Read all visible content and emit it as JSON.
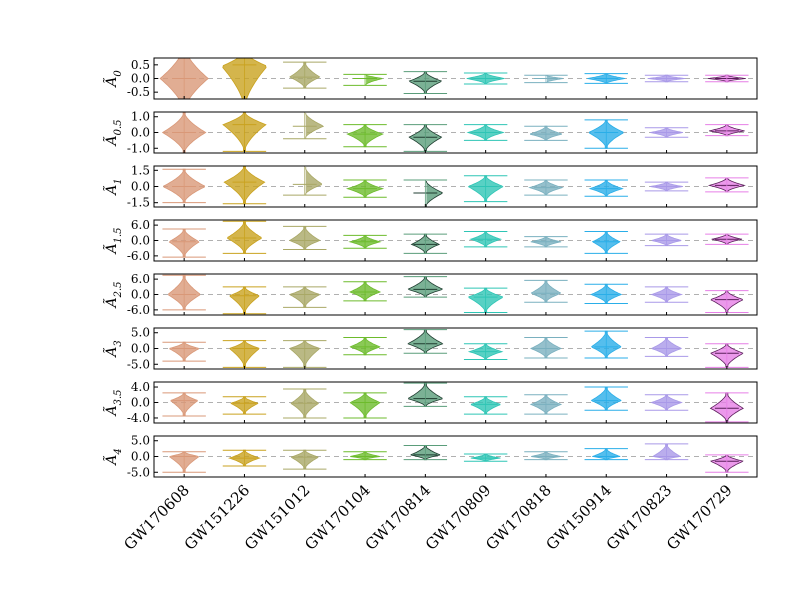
{
  "chart_data": {
    "type": "violin",
    "title": "",
    "xlabel": "",
    "categories": [
      "GW170608",
      "GW151226",
      "GW151012",
      "GW170104",
      "GW170814",
      "GW170809",
      "GW170818",
      "GW150914",
      "GW170823",
      "GW170729"
    ],
    "colors": [
      "#d99878",
      "#c9a21f",
      "#a9a866",
      "#6dbb2c",
      "#5a9d7a",
      "#2ec5b5",
      "#7ab0bf",
      "#2aaee8",
      "#a999e8",
      "#e67fe6"
    ],
    "outlines": [
      "none",
      "none",
      "none",
      "none",
      "#1f3d30",
      "none",
      "none",
      "none",
      "none",
      "#5b1f5b"
    ],
    "panels": [
      {
        "label_base": "Ã",
        "label_sub": "0",
        "ylim": [
          -0.75,
          0.75
        ],
        "ticks": [
          -0.5,
          0.0,
          0.5
        ],
        "tick_labels": [
          "-0.5",
          "0.0",
          "0.5"
        ],
        "violins": [
          {
            "c": 0.0,
            "lo": -1.2,
            "hi": 1.2,
            "w": 0.95,
            "lw": 0.25,
            "med": 0.0
          },
          {
            "c": 0.45,
            "lo": -1.1,
            "hi": 1.0,
            "w": 0.9,
            "lw": 0.22,
            "med": 0.5
          },
          {
            "c": 0.05,
            "lo": -0.35,
            "hi": 0.6,
            "w": 0.6,
            "lw": 0.2,
            "med": 0.05
          },
          {
            "c": 0.0,
            "lo": -0.25,
            "hi": 0.15,
            "w": 0.7,
            "lw": 0.4,
            "med": 0.0
          },
          {
            "c": -0.1,
            "lo": -0.55,
            "hi": 0.25,
            "w": 0.65,
            "lw": 0.35,
            "med": -0.1
          },
          {
            "c": 0.0,
            "lo": -0.2,
            "hi": 0.2,
            "w": 0.75,
            "lw": 0.45,
            "med": 0.0
          },
          {
            "c": 0.0,
            "lo": -0.15,
            "hi": 0.12,
            "w": 0.7,
            "lw": 0.45,
            "med": 0.0
          },
          {
            "c": 0.0,
            "lo": -0.18,
            "hi": 0.18,
            "w": 0.75,
            "lw": 0.45,
            "med": 0.0
          },
          {
            "c": 0.0,
            "lo": -0.12,
            "hi": 0.12,
            "w": 0.75,
            "lw": 0.45,
            "med": 0.0
          },
          {
            "c": 0.0,
            "lo": -0.12,
            "hi": 0.12,
            "w": 0.75,
            "lw": 0.5,
            "med": 0.0
          }
        ]
      },
      {
        "label_base": "Ã",
        "label_sub": "0.5",
        "ylim": [
          -1.3,
          1.3
        ],
        "ticks": [
          -1.0,
          0.0,
          1.0
        ],
        "tick_labels": [
          "-1.0",
          "0.0",
          "1.0"
        ],
        "violins": [
          {
            "c": 0.0,
            "lo": -1.3,
            "hi": 1.3,
            "w": 0.85,
            "lw": 0.25,
            "med": 0.0
          },
          {
            "c": 0.5,
            "lo": -1.2,
            "hi": 1.3,
            "w": 0.85,
            "lw": 0.25,
            "med": 0.5
          },
          {
            "c": 0.4,
            "lo": -0.4,
            "hi": 1.3,
            "w": 0.75,
            "lw": 0.25,
            "med": 0.4
          },
          {
            "c": -0.1,
            "lo": -0.9,
            "hi": 0.5,
            "w": 0.7,
            "lw": 0.35,
            "med": -0.1
          },
          {
            "c": -0.3,
            "lo": -1.2,
            "hi": 0.5,
            "w": 0.65,
            "lw": 0.35,
            "med": -0.3
          },
          {
            "c": 0.0,
            "lo": -0.5,
            "hi": 0.5,
            "w": 0.7,
            "lw": 0.4,
            "med": 0.0
          },
          {
            "c": -0.1,
            "lo": -0.5,
            "hi": 0.4,
            "w": 0.65,
            "lw": 0.4,
            "med": -0.1
          },
          {
            "c": 0.0,
            "lo": -1.0,
            "hi": 0.8,
            "w": 0.7,
            "lw": 0.3,
            "med": 0.0
          },
          {
            "c": 0.0,
            "lo": -0.3,
            "hi": 0.3,
            "w": 0.65,
            "lw": 0.45,
            "med": 0.0
          },
          {
            "c": 0.1,
            "lo": -0.2,
            "hi": 0.5,
            "w": 0.7,
            "lw": 0.45,
            "med": 0.1
          }
        ]
      },
      {
        "label_base": "Ã",
        "label_sub": "1",
        "ylim": [
          -1.9,
          1.9
        ],
        "ticks": [
          -1.5,
          0.0,
          1.5
        ],
        "tick_labels": [
          "-1.5",
          "0.0",
          "1.5"
        ],
        "violins": [
          {
            "c": 0.0,
            "lo": -1.5,
            "hi": 1.6,
            "w": 0.85,
            "lw": 0.3,
            "med": 0.0
          },
          {
            "c": 0.4,
            "lo": -1.6,
            "hi": 1.9,
            "w": 0.8,
            "lw": 0.3,
            "med": 0.4
          },
          {
            "c": 0.2,
            "lo": -0.8,
            "hi": 1.9,
            "w": 0.7,
            "lw": 0.3,
            "med": 0.2
          },
          {
            "c": -0.2,
            "lo": -1.0,
            "hi": 0.6,
            "w": 0.7,
            "lw": 0.4,
            "med": -0.2
          },
          {
            "c": -0.6,
            "lo": -1.9,
            "hi": 0.6,
            "w": 0.7,
            "lw": 0.35,
            "med": -0.6
          },
          {
            "c": 0.0,
            "lo": -1.4,
            "hi": 1.0,
            "w": 0.7,
            "lw": 0.35,
            "med": 0.0
          },
          {
            "c": -0.1,
            "lo": -0.8,
            "hi": 0.6,
            "w": 0.65,
            "lw": 0.4,
            "med": -0.1
          },
          {
            "c": -0.2,
            "lo": -0.9,
            "hi": 0.6,
            "w": 0.65,
            "lw": 0.4,
            "med": -0.2
          },
          {
            "c": 0.0,
            "lo": -0.4,
            "hi": 0.4,
            "w": 0.65,
            "lw": 0.45,
            "med": 0.0
          },
          {
            "c": 0.1,
            "lo": -0.5,
            "hi": 0.8,
            "w": 0.7,
            "lw": 0.4,
            "med": 0.1
          }
        ]
      },
      {
        "label_base": "Ã",
        "label_sub": "1.5",
        "ylim": [
          -8,
          8
        ],
        "ticks": [
          -6.0,
          0.0,
          6.0
        ],
        "tick_labels": [
          "-6.0",
          "0.0",
          "6.0"
        ],
        "violins": [
          {
            "c": -0.5,
            "lo": -6.5,
            "hi": 4.5,
            "w": 0.6,
            "lw": 0.3,
            "med": -0.5
          },
          {
            "c": 1.0,
            "lo": -5.0,
            "hi": 7.5,
            "w": 0.7,
            "lw": 0.3,
            "med": 1.0
          },
          {
            "c": 0.0,
            "lo": -3.5,
            "hi": 5.5,
            "w": 0.6,
            "lw": 0.3,
            "med": 0.0
          },
          {
            "c": -0.5,
            "lo": -3.0,
            "hi": 2.0,
            "w": 0.6,
            "lw": 0.4,
            "med": -0.5
          },
          {
            "c": -1.5,
            "lo": -5.0,
            "hi": 2.5,
            "w": 0.55,
            "lw": 0.35,
            "med": -1.5
          },
          {
            "c": 0.5,
            "lo": -2.5,
            "hi": 3.5,
            "w": 0.6,
            "lw": 0.4,
            "med": 0.5
          },
          {
            "c": -0.5,
            "lo": -2.5,
            "hi": 1.5,
            "w": 0.6,
            "lw": 0.45,
            "med": -0.5
          },
          {
            "c": -0.5,
            "lo": -5.0,
            "hi": 3.5,
            "w": 0.55,
            "lw": 0.35,
            "med": -0.5
          },
          {
            "c": 0.0,
            "lo": -2.0,
            "hi": 2.5,
            "w": 0.6,
            "lw": 0.45,
            "med": 0.0
          },
          {
            "c": 0.5,
            "lo": -1.5,
            "hi": 2.5,
            "w": 0.6,
            "lw": 0.45,
            "med": 0.5
          }
        ]
      },
      {
        "label_base": "Ã",
        "label_sub": "2.5",
        "ylim": [
          -8,
          8
        ],
        "ticks": [
          -6.0,
          0.0,
          6.0
        ],
        "tick_labels": [
          "-6.0",
          "0.0",
          "6.0"
        ],
        "violins": [
          {
            "c": 0.0,
            "lo": -6.0,
            "hi": 7.5,
            "w": 0.65,
            "lw": 0.3,
            "med": 0.0
          },
          {
            "c": -0.5,
            "lo": -7.5,
            "hi": 3.0,
            "w": 0.6,
            "lw": 0.35,
            "med": -0.5
          },
          {
            "c": 0.0,
            "lo": -5.0,
            "hi": 3.0,
            "w": 0.6,
            "lw": 0.35,
            "med": 0.0
          },
          {
            "c": 1.0,
            "lo": -2.5,
            "hi": 5.0,
            "w": 0.6,
            "lw": 0.4,
            "med": 1.0
          },
          {
            "c": 2.0,
            "lo": -1.0,
            "hi": 7.0,
            "w": 0.7,
            "lw": 0.35,
            "med": 2.0
          },
          {
            "c": -1.0,
            "lo": -7.0,
            "hi": 2.5,
            "w": 0.7,
            "lw": 0.35,
            "med": -1.0
          },
          {
            "c": 0.5,
            "lo": -3.0,
            "hi": 5.5,
            "w": 0.6,
            "lw": 0.4,
            "med": 0.5
          },
          {
            "c": 0.0,
            "lo": -3.5,
            "hi": 4.0,
            "w": 0.6,
            "lw": 0.4,
            "med": 0.0
          },
          {
            "c": 0.0,
            "lo": -3.0,
            "hi": 3.0,
            "w": 0.6,
            "lw": 0.45,
            "med": 0.0
          },
          {
            "c": -2.0,
            "lo": -7.0,
            "hi": 1.5,
            "w": 0.65,
            "lw": 0.35,
            "med": -2.0
          }
        ]
      },
      {
        "label_base": "Ã",
        "label_sub": "3",
        "ylim": [
          -6.5,
          6.5
        ],
        "ticks": [
          -5.0,
          0.0,
          5.0
        ],
        "tick_labels": [
          "-5.0",
          "0.0",
          "5.0"
        ],
        "violins": [
          {
            "c": 0.0,
            "lo": -4.0,
            "hi": 2.0,
            "w": 0.6,
            "lw": 0.35,
            "med": 0.0
          },
          {
            "c": 0.0,
            "lo": -6.0,
            "hi": 2.5,
            "w": 0.6,
            "lw": 0.35,
            "med": 0.0
          },
          {
            "c": 0.0,
            "lo": -6.0,
            "hi": 2.5,
            "w": 0.6,
            "lw": 0.35,
            "med": 0.0
          },
          {
            "c": 0.5,
            "lo": -2.0,
            "hi": 3.5,
            "w": 0.6,
            "lw": 0.4,
            "med": 0.5
          },
          {
            "c": 1.5,
            "lo": -1.5,
            "hi": 6.0,
            "w": 0.7,
            "lw": 0.35,
            "med": 1.5
          },
          {
            "c": -1.0,
            "lo": -3.5,
            "hi": 1.5,
            "w": 0.65,
            "lw": 0.4,
            "med": -1.0
          },
          {
            "c": 0.0,
            "lo": -3.0,
            "hi": 3.5,
            "w": 0.6,
            "lw": 0.4,
            "med": 0.0
          },
          {
            "c": 0.5,
            "lo": -3.0,
            "hi": 5.5,
            "w": 0.6,
            "lw": 0.35,
            "med": 0.5
          },
          {
            "c": 0.0,
            "lo": -2.5,
            "hi": 3.5,
            "w": 0.6,
            "lw": 0.4,
            "med": 0.0
          },
          {
            "c": -1.5,
            "lo": -6.0,
            "hi": 1.5,
            "w": 0.65,
            "lw": 0.35,
            "med": -1.5
          }
        ]
      },
      {
        "label_base": "Ã",
        "label_sub": "3.5",
        "ylim": [
          -5.3,
          5.3
        ],
        "ticks": [
          -4.0,
          0.0,
          4.0
        ],
        "tick_labels": [
          "-4.0",
          "0.0",
          "4.0"
        ],
        "violins": [
          {
            "c": 0.5,
            "lo": -3.5,
            "hi": 2.5,
            "w": 0.55,
            "lw": 0.35,
            "med": 0.5
          },
          {
            "c": -0.2,
            "lo": -3.0,
            "hi": 1.5,
            "w": 0.55,
            "lw": 0.4,
            "med": -0.2
          },
          {
            "c": -0.2,
            "lo": -4.0,
            "hi": 3.5,
            "w": 0.55,
            "lw": 0.35,
            "med": -0.2
          },
          {
            "c": 0.0,
            "lo": -4.0,
            "hi": 2.5,
            "w": 0.6,
            "lw": 0.4,
            "med": 0.0
          },
          {
            "c": 1.0,
            "lo": -1.0,
            "hi": 5.0,
            "w": 0.7,
            "lw": 0.35,
            "med": 1.0
          },
          {
            "c": -0.5,
            "lo": -3.0,
            "hi": 1.5,
            "w": 0.6,
            "lw": 0.45,
            "med": -0.5
          },
          {
            "c": -0.5,
            "lo": -3.0,
            "hi": 2.0,
            "w": 0.6,
            "lw": 0.4,
            "med": -0.5
          },
          {
            "c": 0.5,
            "lo": -2.0,
            "hi": 4.0,
            "w": 0.6,
            "lw": 0.4,
            "med": 0.5
          },
          {
            "c": 0.0,
            "lo": -2.0,
            "hi": 2.0,
            "w": 0.6,
            "lw": 0.45,
            "med": 0.0
          },
          {
            "c": -1.5,
            "lo": -5.0,
            "hi": 2.5,
            "w": 0.65,
            "lw": 0.35,
            "med": -1.5
          }
        ]
      },
      {
        "label_base": "Ã",
        "label_sub": "4",
        "ylim": [
          -6.5,
          6.5
        ],
        "ticks": [
          -5.0,
          0.0,
          5.0
        ],
        "tick_labels": [
          "-5.0",
          "0.0",
          "5.0"
        ],
        "violins": [
          {
            "c": 0.0,
            "lo": -5.0,
            "hi": 1.5,
            "w": 0.6,
            "lw": 0.4,
            "med": 0.0
          },
          {
            "c": -0.5,
            "lo": -3.0,
            "hi": 2.0,
            "w": 0.6,
            "lw": 0.4,
            "med": -0.5
          },
          {
            "c": -0.2,
            "lo": -4.0,
            "hi": 2.0,
            "w": 0.55,
            "lw": 0.4,
            "med": -0.2
          },
          {
            "c": 0.0,
            "lo": -1.0,
            "hi": 1.5,
            "w": 0.6,
            "lw": 0.45,
            "med": 0.0
          },
          {
            "c": 0.5,
            "lo": -1.0,
            "hi": 3.5,
            "w": 0.6,
            "lw": 0.4,
            "med": 0.5
          },
          {
            "c": -0.5,
            "lo": -1.5,
            "hi": 0.8,
            "w": 0.6,
            "lw": 0.45,
            "med": -0.5
          },
          {
            "c": 0.0,
            "lo": -1.0,
            "hi": 1.5,
            "w": 0.6,
            "lw": 0.45,
            "med": 0.0
          },
          {
            "c": 0.0,
            "lo": -1.0,
            "hi": 2.5,
            "w": 0.55,
            "lw": 0.45,
            "med": 0.0
          },
          {
            "c": 0.0,
            "lo": -1.0,
            "hi": 4.0,
            "w": 0.55,
            "lw": 0.4,
            "med": 0.0
          },
          {
            "c": -1.5,
            "lo": -5.0,
            "hi": 0.5,
            "w": 0.65,
            "lw": 0.35,
            "med": -1.5
          }
        ]
      }
    ]
  }
}
